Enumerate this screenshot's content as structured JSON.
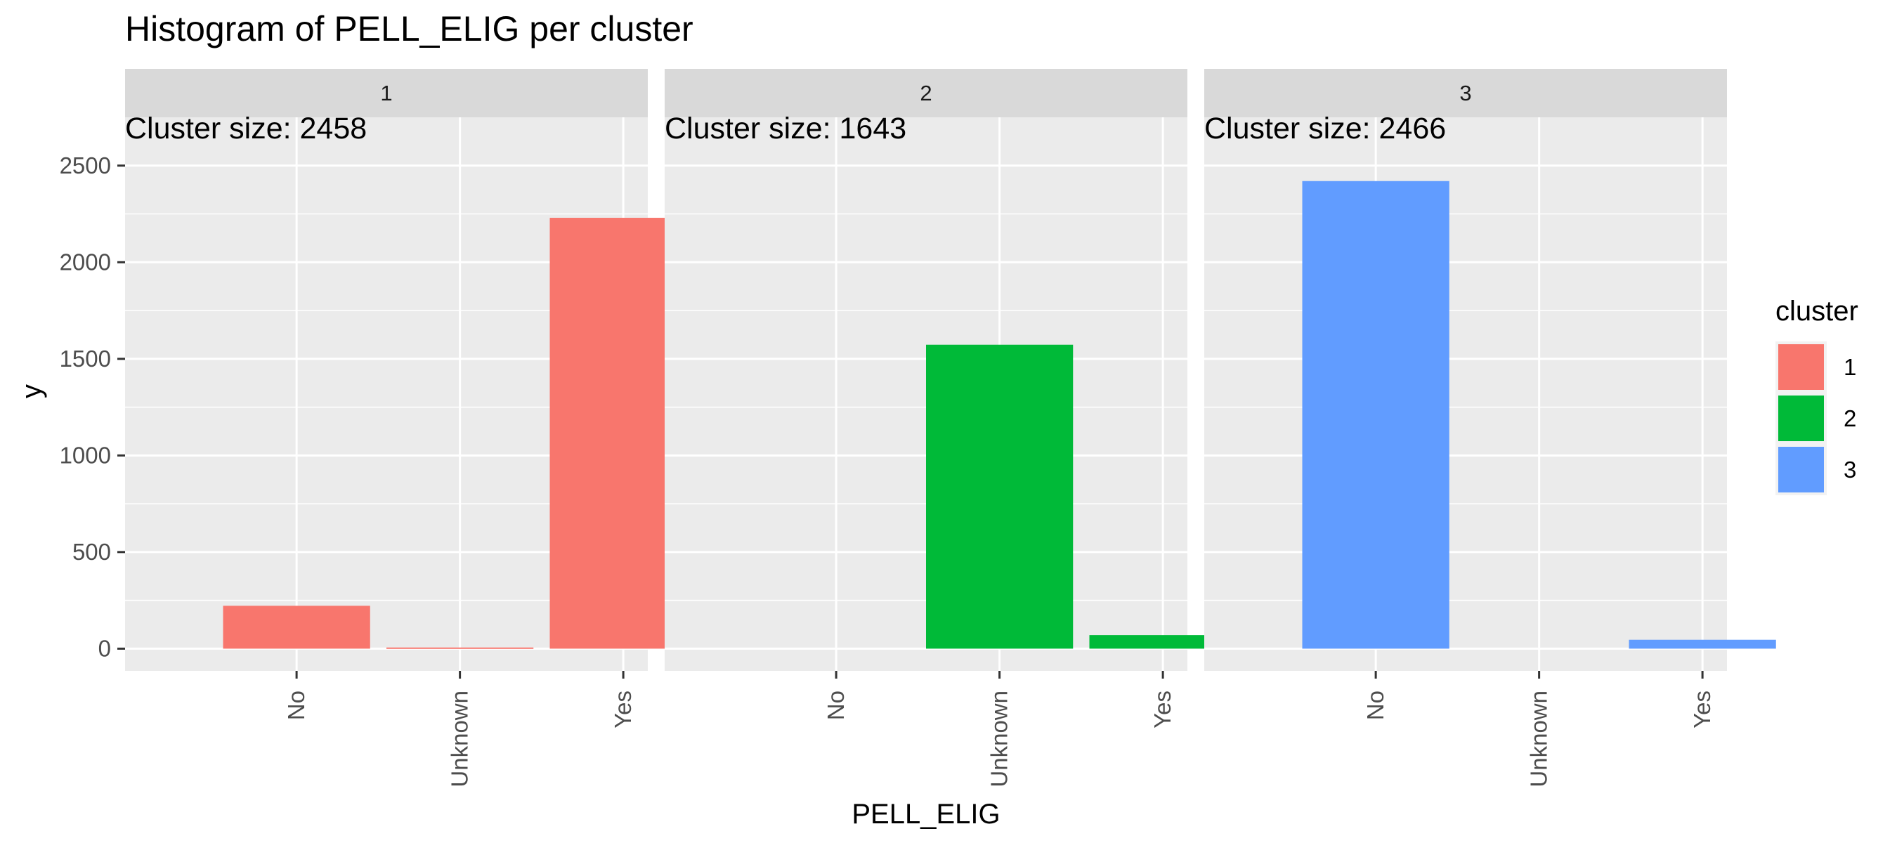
{
  "chart_data": {
    "type": "bar",
    "title": "Histogram of PELL_ELIG per cluster",
    "xlabel": "PELL_ELIG",
    "ylabel": "y",
    "ylim": [
      -115,
      2750
    ],
    "yticks": [
      0,
      500,
      1000,
      1500,
      2000,
      2500
    ],
    "categories": [
      "No",
      "Unknown",
      "Yes"
    ],
    "legend": {
      "title": "cluster",
      "position": "right",
      "items": [
        {
          "label": "1",
          "color": "#F8766D"
        },
        {
          "label": "2",
          "color": "#00BA38"
        },
        {
          "label": "3",
          "color": "#619CFF"
        }
      ]
    },
    "facets": [
      {
        "label": "1",
        "annotation": "Cluster size: 2458",
        "color": "#F8766D",
        "values": [
          222,
          6,
          2230
        ]
      },
      {
        "label": "2",
        "annotation": "Cluster size: 1643",
        "color": "#00BA38",
        "values": [
          0,
          1573,
          70
        ]
      },
      {
        "label": "3",
        "annotation": "Cluster size: 2466",
        "color": "#619CFF",
        "values": [
          2420,
          0,
          46
        ]
      }
    ],
    "grid": true,
    "panel_background": "#EBEBEB",
    "strip_background": "#D9D9D9"
  }
}
